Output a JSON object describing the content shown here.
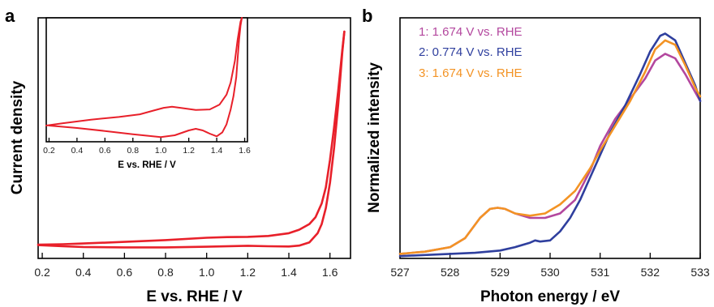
{
  "chart_data": [
    {
      "panel": "a",
      "type": "line",
      "xlabel": "E vs. RHE / V",
      "ylabel": "Current density",
      "xlim": [
        0.18,
        1.7
      ],
      "ylim": [
        -0.05,
        1.0
      ],
      "xticks": [
        0.2,
        0.4,
        0.6,
        0.8,
        1.0,
        1.2,
        1.4,
        1.6
      ],
      "xtick_labels": [
        "0.2",
        "0.4",
        "0.6",
        "0.8",
        "1.0",
        "1.2",
        "1.4",
        "1.6"
      ],
      "y_ticks_labeled": false,
      "color": "#e8202a",
      "series": [
        {
          "x": [
            0.18,
            0.3,
            0.4,
            0.6,
            0.8,
            1.0,
            1.1,
            1.2,
            1.3,
            1.4,
            1.45,
            1.5,
            1.53,
            1.56,
            1.58,
            1.6,
            1.62,
            1.64,
            1.66,
            1.67
          ],
          "y": [
            0.01,
            0.012,
            0.015,
            0.022,
            0.03,
            0.04,
            0.043,
            0.044,
            0.048,
            0.06,
            0.075,
            0.1,
            0.13,
            0.19,
            0.26,
            0.38,
            0.52,
            0.68,
            0.86,
            0.94
          ]
        },
        {
          "x": [
            1.67,
            1.66,
            1.64,
            1.62,
            1.6,
            1.58,
            1.56,
            1.54,
            1.5,
            1.45,
            1.4,
            1.3,
            1.2,
            1.0,
            0.8,
            0.6,
            0.4,
            0.3,
            0.18
          ],
          "y": [
            0.94,
            0.85,
            0.62,
            0.43,
            0.28,
            0.17,
            0.1,
            0.06,
            0.02,
            0.006,
            0.002,
            0.003,
            0.005,
            0.001,
            -0.002,
            -0.002,
            0.0,
            0.003,
            0.008
          ]
        }
      ],
      "inset": {
        "type": "line",
        "xlabel": "E vs. RHE / V",
        "xlim": [
          0.18,
          1.62
        ],
        "ylim": [
          -0.6,
          4.0
        ],
        "xticks": [
          0.2,
          0.4,
          0.6,
          0.8,
          1.0,
          1.2,
          1.4,
          1.6
        ],
        "xtick_labels": [
          "0.2",
          "0.4",
          "0.6",
          "0.8",
          "1.0",
          "1.2",
          "1.4",
          "1.6"
        ],
        "color": "#e8202a",
        "series": [
          {
            "x": [
              0.18,
              0.3,
              0.5,
              0.7,
              0.85,
              0.95,
              1.02,
              1.08,
              1.15,
              1.25,
              1.35,
              1.42,
              1.47,
              1.5,
              1.53,
              1.55,
              1.57,
              1.58
            ],
            "y": [
              0.0,
              0.09,
              0.22,
              0.32,
              0.42,
              0.56,
              0.66,
              0.7,
              0.65,
              0.58,
              0.6,
              0.78,
              1.15,
              1.6,
              2.4,
              3.2,
              3.85,
              4.0
            ]
          },
          {
            "x": [
              1.58,
              1.57,
              1.56,
              1.55,
              1.54,
              1.52,
              1.5,
              1.47,
              1.44,
              1.4,
              1.35,
              1.3,
              1.25,
              1.2,
              1.1,
              1.0,
              0.8,
              0.6,
              0.4,
              0.2
            ],
            "y": [
              4.0,
              3.7,
              3.2,
              2.5,
              1.8,
              1.1,
              0.6,
              0.05,
              -0.25,
              -0.4,
              -0.3,
              -0.18,
              -0.12,
              -0.18,
              -0.36,
              -0.43,
              -0.32,
              -0.2,
              -0.09,
              0.0
            ]
          }
        ]
      }
    },
    {
      "panel": "b",
      "type": "line",
      "xlabel": "Photon energy / eV",
      "ylabel": "Normalized intensity",
      "xlim": [
        527,
        533
      ],
      "ylim": [
        0,
        1.07
      ],
      "xticks": [
        527,
        528,
        529,
        530,
        531,
        532,
        533
      ],
      "xtick_labels": [
        "527",
        "528",
        "529",
        "530",
        "531",
        "532",
        "533"
      ],
      "y_ticks_labeled": false,
      "legend_position": "top-left",
      "series": [
        {
          "name": "1: 1.674 V vs. RHE",
          "color": "#b3479e",
          "x": [
            527.0,
            527.5,
            528.0,
            528.3,
            528.6,
            528.8,
            528.95,
            529.1,
            529.3,
            529.6,
            529.9,
            530.2,
            530.5,
            530.8,
            531.0,
            531.3,
            531.6,
            531.9,
            532.1,
            532.3,
            532.5,
            532.7,
            532.9,
            533.0
          ],
          "y": [
            0.02,
            0.03,
            0.05,
            0.09,
            0.18,
            0.22,
            0.225,
            0.22,
            0.2,
            0.18,
            0.18,
            0.2,
            0.26,
            0.39,
            0.5,
            0.62,
            0.71,
            0.8,
            0.88,
            0.91,
            0.89,
            0.82,
            0.74,
            0.7
          ]
        },
        {
          "name": "2: 0.774 V vs. RHE",
          "color": "#2f3f9e",
          "x": [
            527.0,
            527.5,
            528.0,
            528.5,
            529.0,
            529.3,
            529.6,
            529.7,
            529.8,
            530.0,
            530.2,
            530.4,
            530.6,
            530.8,
            531.0,
            531.2,
            531.5,
            531.8,
            532.0,
            532.2,
            532.3,
            532.5,
            532.7,
            532.9,
            533.0
          ],
          "y": [
            0.01,
            0.015,
            0.02,
            0.025,
            0.035,
            0.05,
            0.07,
            0.08,
            0.075,
            0.08,
            0.12,
            0.18,
            0.26,
            0.36,
            0.46,
            0.56,
            0.68,
            0.82,
            0.92,
            0.99,
            1.0,
            0.97,
            0.87,
            0.77,
            0.7
          ]
        },
        {
          "name": "3: 1.674 V vs. RHE",
          "color": "#f39324",
          "x": [
            527.0,
            527.5,
            528.0,
            528.3,
            528.6,
            528.8,
            528.95,
            529.1,
            529.3,
            529.6,
            529.9,
            530.2,
            530.5,
            530.8,
            531.0,
            531.3,
            531.6,
            531.9,
            532.1,
            532.3,
            532.5,
            532.7,
            532.9,
            533.0
          ],
          "y": [
            0.02,
            0.03,
            0.05,
            0.09,
            0.18,
            0.22,
            0.225,
            0.22,
            0.2,
            0.19,
            0.2,
            0.24,
            0.3,
            0.4,
            0.48,
            0.59,
            0.7,
            0.83,
            0.93,
            0.97,
            0.95,
            0.86,
            0.76,
            0.72
          ]
        }
      ]
    }
  ]
}
